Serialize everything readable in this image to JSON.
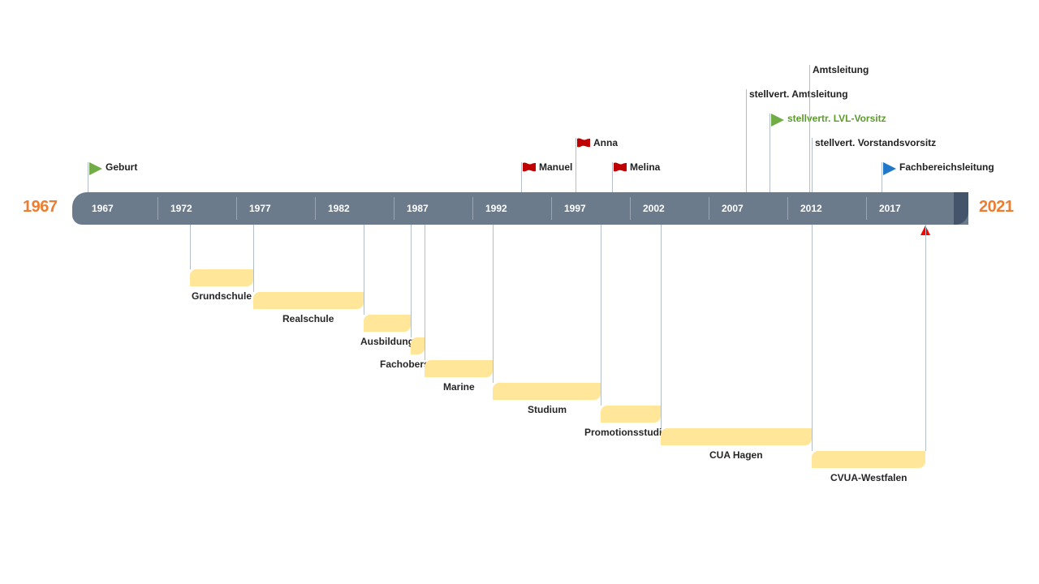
{
  "timeline": {
    "start_label": "1967",
    "end_label": "2021",
    "start_year": 1967,
    "end_year": 2021,
    "ticks": [
      "1967",
      "1972",
      "1977",
      "1982",
      "1987",
      "1992",
      "1997",
      "2002",
      "2007",
      "2012",
      "2017"
    ],
    "today_marker_year": 2020.2,
    "colors": {
      "bar": "#6C7B8C",
      "bar_end": "#44546A",
      "end_labels": "#ED7D31",
      "periods": "#FFE699",
      "today_marker": "#FF0000"
    }
  },
  "events": [
    {
      "label": "Geburt",
      "year": 1967,
      "flag": "green-triangle-flag",
      "color": "#222222"
    },
    {
      "label": "Manuel",
      "year": 1994.5,
      "flag": "red-wave-flag",
      "color": "#222222"
    },
    {
      "label": "Anna",
      "year": 1998.0,
      "flag": "red-wave-flag",
      "color": "#222222"
    },
    {
      "label": "Melina",
      "year": 2000.3,
      "flag": "red-wave-flag",
      "color": "#222222"
    },
    {
      "label": "stellvert. Amtsleitung",
      "year": 2008.8,
      "flag": "",
      "color": "#222222"
    },
    {
      "label": "stellvertr. LVL-Vorsitz",
      "year": 2010.3,
      "flag": "green-triangle-flag",
      "color": "#5B9A2C"
    },
    {
      "label": "Amtsleitung",
      "year": 2012.8,
      "flag": "",
      "color": "#222222"
    },
    {
      "label": "stellvert. Vorstandsvorsitz",
      "year": 2013.0,
      "flag": "",
      "color": "#222222"
    },
    {
      "label": "Fachbereichsleitung",
      "year": 2017.4,
      "flag": "blue-triangle-flag",
      "color": "#222222"
    }
  ],
  "periods": [
    {
      "label": "Grundschule",
      "start": 1973.5,
      "end": 1977.5
    },
    {
      "label": "Realschule",
      "start": 1977.5,
      "end": 1984.5
    },
    {
      "label": "Ausbildung",
      "start": 1984.5,
      "end": 1987.5
    },
    {
      "label": "Fachoberschule",
      "start": 1987.5,
      "end": 1988.4
    },
    {
      "label": "Marine",
      "start": 1988.4,
      "end": 1992.7
    },
    {
      "label": "Studium",
      "start": 1992.7,
      "end": 1999.6
    },
    {
      "label": "Promotionsstudium",
      "start": 1999.6,
      "end": 2003.4
    },
    {
      "label": "CUA Hagen",
      "start": 2003.4,
      "end": 2013.0
    },
    {
      "label": "CVUA-Westfalen",
      "start": 2013.0,
      "end": 2020.2
    }
  ]
}
